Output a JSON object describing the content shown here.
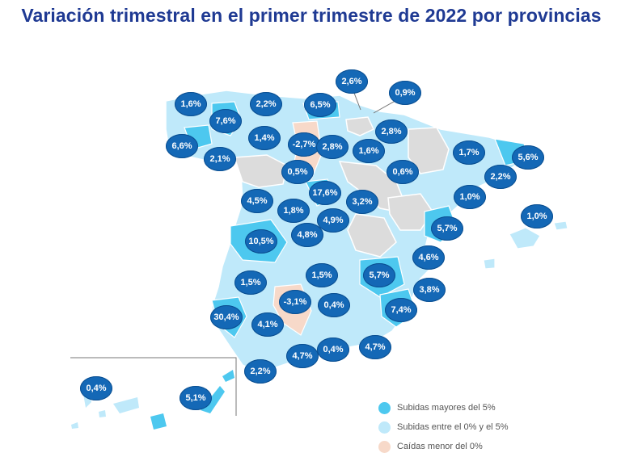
{
  "title": "Variación trimestral en el primer trimestre de 2022 por provincias",
  "colors": {
    "above5": "#4dc8ef",
    "between0and5": "#bfe9fa",
    "negative": "#f7d9c9",
    "nodata": "#dcdcdc",
    "badge": "#1468b6",
    "title": "#1f3a93"
  },
  "provinces": [
    {
      "id": "a-coruna",
      "label": "1,6%",
      "category": "between0and5"
    },
    {
      "id": "lugo",
      "label": "7,6%",
      "category": "above5"
    },
    {
      "id": "asturias",
      "label": "2,2%",
      "category": "between0and5"
    },
    {
      "id": "cantabria",
      "label": "6,5%",
      "category": "above5"
    },
    {
      "id": "bizkaia",
      "label": "2,6%",
      "category": "between0and5"
    },
    {
      "id": "gipuzkoa",
      "label": "0,9%",
      "category": "between0and5"
    },
    {
      "id": "pontevedra",
      "label": "6,6%",
      "category": "above5"
    },
    {
      "id": "ourense",
      "label": "2,1%",
      "category": "between0and5"
    },
    {
      "id": "leon",
      "label": "1,4%",
      "category": "between0and5"
    },
    {
      "id": "burgos",
      "label": "-2,7%",
      "category": "negative"
    },
    {
      "id": "alava",
      "label": "2,8%",
      "category": "between0and5"
    },
    {
      "id": "navarra",
      "label": "2,8%",
      "category": "between0and5"
    },
    {
      "id": "la-rioja",
      "label": "1,6%",
      "category": "between0and5"
    },
    {
      "id": "huesca",
      "label": "1,7%",
      "category": "between0and5"
    },
    {
      "id": "girona",
      "label": "5,6%",
      "category": "above5"
    },
    {
      "id": "barcelona",
      "label": "2,2%",
      "category": "between0and5"
    },
    {
      "id": "zaragoza",
      "label": "0,6%",
      "category": "between0and5"
    },
    {
      "id": "palencia",
      "label": "0,5%",
      "category": "between0and5"
    },
    {
      "id": "segovia",
      "label": "17,6%",
      "category": "above5"
    },
    {
      "id": "guadalajara",
      "label": "3,2%",
      "category": "between0and5"
    },
    {
      "id": "tarragona",
      "label": "1,0%",
      "category": "between0and5"
    },
    {
      "id": "baleares",
      "label": "1,0%",
      "category": "between0and5"
    },
    {
      "id": "salamanca",
      "label": "4,5%",
      "category": "between0and5"
    },
    {
      "id": "avila",
      "label": "1,8%",
      "category": "between0and5"
    },
    {
      "id": "madrid",
      "label": "4,9%",
      "category": "between0and5"
    },
    {
      "id": "castellon",
      "label": "5,7%",
      "category": "above5"
    },
    {
      "id": "caceres",
      "label": "10,5%",
      "category": "above5"
    },
    {
      "id": "toledo",
      "label": "4,8%",
      "category": "between0and5"
    },
    {
      "id": "valencia",
      "label": "4,6%",
      "category": "between0and5"
    },
    {
      "id": "badajoz",
      "label": "1,5%",
      "category": "between0and5"
    },
    {
      "id": "ciudad-real",
      "label": "1,5%",
      "category": "between0and5"
    },
    {
      "id": "albacete",
      "label": "5,7%",
      "category": "above5"
    },
    {
      "id": "alicante",
      "label": "3,8%",
      "category": "between0and5"
    },
    {
      "id": "cordoba",
      "label": "-3,1%",
      "category": "negative"
    },
    {
      "id": "jaen",
      "label": "0,4%",
      "category": "between0and5"
    },
    {
      "id": "murcia",
      "label": "7,4%",
      "category": "above5"
    },
    {
      "id": "huelva",
      "label": "30,4%",
      "category": "above5"
    },
    {
      "id": "sevilla",
      "label": "4,1%",
      "category": "between0and5"
    },
    {
      "id": "malaga",
      "label": "4,7%",
      "category": "between0and5"
    },
    {
      "id": "granada",
      "label": "0,4%",
      "category": "between0and5"
    },
    {
      "id": "almeria",
      "label": "4,7%",
      "category": "between0and5"
    },
    {
      "id": "cadiz",
      "label": "2,2%",
      "category": "between0and5"
    },
    {
      "id": "santa-cruz-de-tenerife",
      "label": "0,4%",
      "category": "between0and5"
    },
    {
      "id": "las-palmas",
      "label": "5,1%",
      "category": "above5"
    }
  ],
  "legend": [
    {
      "label": "Subidas mayores del 5%",
      "category": "above5"
    },
    {
      "label": "Subidas entre el 0% y el 5%",
      "category": "between0and5"
    },
    {
      "label": "Caídas menor del 0%",
      "category": "negative"
    }
  ]
}
